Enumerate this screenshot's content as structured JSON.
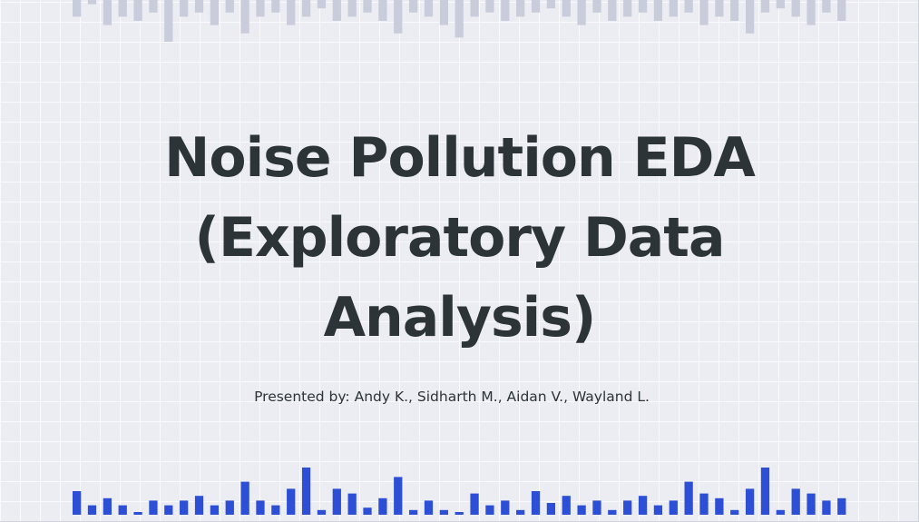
{
  "slide": {
    "title_line1": "Noise Pollution EDA",
    "title_line2": "(Exploratory Data",
    "title_line3": "Analysis)",
    "subtitle": "Presented by: Andy K., Sidharth M., Aidan V., Wayland L."
  },
  "decor": {
    "top_bar_color": "#c9ccda",
    "bottom_bar_color": "#2d4fd6",
    "top_bar_levels": [
      0.4,
      0.1,
      0.6,
      0.4,
      0.5,
      0.3,
      1.0,
      0.4,
      0.3,
      0.6,
      0.3,
      0.8,
      0.4,
      0.3,
      0.6,
      0.4,
      0.2,
      0.5,
      0.4,
      0.3,
      0.5,
      0.8,
      0.3,
      0.4,
      0.6,
      0.9,
      0.4,
      0.3,
      0.5,
      0.4,
      0.3,
      0.2,
      0.4,
      0.6,
      0.3,
      0.5,
      0.4,
      0.3,
      0.5,
      0.4,
      0.3,
      0.6,
      0.4,
      0.5,
      0.8,
      0.3,
      0.2,
      0.4,
      0.6,
      0.3,
      0.5
    ],
    "bottom_bar_levels": [
      0.5,
      0.2,
      0.35,
      0.2,
      0.05,
      0.3,
      0.2,
      0.3,
      0.4,
      0.2,
      0.3,
      0.7,
      0.3,
      0.2,
      0.55,
      1.0,
      0.1,
      0.55,
      0.45,
      0.15,
      0.35,
      0.8,
      0.1,
      0.3,
      0.1,
      0.05,
      0.45,
      0.2,
      0.3,
      0.1,
      0.5,
      0.25,
      0.4,
      0.2,
      0.3,
      0.1,
      0.3,
      0.4,
      0.2,
      0.3,
      0.7,
      0.45,
      0.35,
      0.1,
      0.55,
      1.0,
      0.1,
      0.55,
      0.45,
      0.3,
      0.35
    ]
  }
}
